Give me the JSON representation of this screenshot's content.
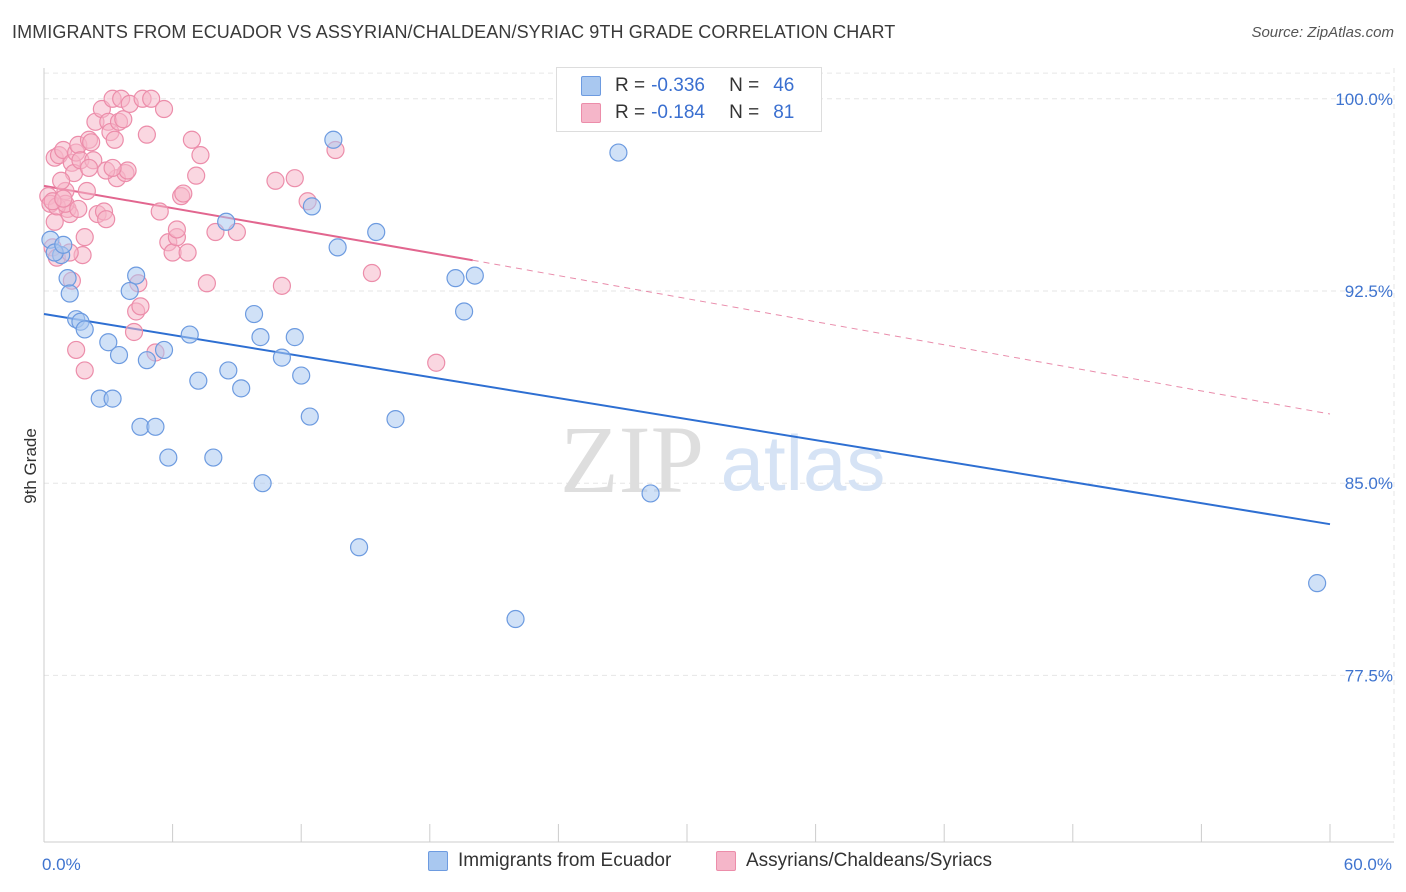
{
  "title": "IMMIGRANTS FROM ECUADOR VS ASSYRIAN/CHALDEAN/SYRIAC 9TH GRADE CORRELATION CHART",
  "source": "Source: ZipAtlas.com",
  "watermark": {
    "zip": "ZIP",
    "atlas": "atlas"
  },
  "legend": {
    "rows": [
      {
        "r_label": "R =",
        "r_value": "-0.336",
        "n_label": "N =",
        "n_value": "46"
      },
      {
        "r_label": "R =",
        "r_value": "-0.184",
        "n_label": "N =",
        "n_value": "81"
      }
    ]
  },
  "colors": {
    "blue_fill": "#a9c8f0",
    "blue_stroke": "#6d9be0",
    "blue_line": "#2e6fd2",
    "pink_fill": "#f5b6c9",
    "pink_stroke": "#ec8daa",
    "pink_line": "#e2668f",
    "tick_text": "#3f74cf",
    "grid": "#e6e6e6"
  },
  "chart_data": {
    "type": "scatter",
    "title": "IMMIGRANTS FROM ECUADOR VS ASSYRIAN/CHALDEAN/SYRIAC 9TH GRADE CORRELATION CHART",
    "xlabel": "",
    "ylabel": "9th Grade",
    "xlim": [
      0,
      60
    ],
    "ylim": [
      71.0,
      101.2
    ],
    "x_tick_labels": [
      {
        "value": 0,
        "label": "0.0%"
      },
      {
        "value": 60,
        "label": "60.0%"
      }
    ],
    "y_tick_labels": [
      {
        "value": 100.0,
        "label": "100.0%"
      },
      {
        "value": 92.5,
        "label": "92.5%"
      },
      {
        "value": 85.0,
        "label": "85.0%"
      },
      {
        "value": 77.5,
        "label": "77.5%"
      }
    ],
    "x_minor_ticks": [
      6,
      12,
      18,
      24,
      30,
      36,
      42,
      48,
      54,
      60
    ],
    "series": [
      {
        "name": "Immigrants from Ecuador",
        "color": "blue",
        "trend": {
          "x0": 0,
          "y0": 91.6,
          "x1": 60,
          "y1": 83.4
        },
        "points": [
          [
            0.3,
            94.5
          ],
          [
            0.8,
            93.9
          ],
          [
            0.5,
            94.0
          ],
          [
            1.1,
            93.0
          ],
          [
            1.2,
            92.4
          ],
          [
            1.5,
            91.4
          ],
          [
            1.7,
            91.3
          ],
          [
            1.9,
            91.0
          ],
          [
            3.0,
            90.5
          ],
          [
            3.5,
            90.0
          ],
          [
            4.3,
            93.1
          ],
          [
            4.0,
            92.5
          ],
          [
            2.6,
            88.3
          ],
          [
            3.2,
            88.3
          ],
          [
            4.5,
            87.2
          ],
          [
            5.2,
            87.2
          ],
          [
            4.8,
            89.8
          ],
          [
            5.6,
            90.2
          ],
          [
            5.8,
            86.0
          ],
          [
            6.8,
            90.8
          ],
          [
            7.2,
            89.0
          ],
          [
            7.9,
            86.0
          ],
          [
            8.5,
            95.2
          ],
          [
            8.6,
            89.4
          ],
          [
            9.2,
            88.7
          ],
          [
            9.8,
            91.6
          ],
          [
            10.1,
            90.7
          ],
          [
            11.1,
            89.9
          ],
          [
            11.7,
            90.7
          ],
          [
            10.2,
            85.0
          ],
          [
            12.0,
            89.2
          ],
          [
            12.4,
            87.6
          ],
          [
            12.5,
            95.8
          ],
          [
            13.5,
            98.4
          ],
          [
            13.7,
            94.2
          ],
          [
            14.7,
            82.5
          ],
          [
            15.5,
            94.8
          ],
          [
            16.4,
            87.5
          ],
          [
            19.2,
            93.0
          ],
          [
            19.6,
            91.7
          ],
          [
            20.1,
            93.1
          ],
          [
            22.0,
            79.7
          ],
          [
            26.8,
            97.9
          ],
          [
            28.3,
            84.6
          ],
          [
            59.4,
            81.1
          ],
          [
            0.9,
            94.3
          ]
        ]
      },
      {
        "name": "Assyrians/Chaldeans/Syriacs",
        "color": "pink",
        "trend": {
          "x0": 0,
          "y0": 96.6,
          "x1": 20.0,
          "y1": 93.7
        },
        "trend_extension": {
          "x0": 20.0,
          "y0": 93.7,
          "x1": 60,
          "y1": 87.7
        },
        "points": [
          [
            0.2,
            96.2
          ],
          [
            0.3,
            95.9
          ],
          [
            0.5,
            95.2
          ],
          [
            0.4,
            94.2
          ],
          [
            0.6,
            93.8
          ],
          [
            0.5,
            97.7
          ],
          [
            0.7,
            97.8
          ],
          [
            0.9,
            98.0
          ],
          [
            1.0,
            96.4
          ],
          [
            1.1,
            95.7
          ],
          [
            1.2,
            95.5
          ],
          [
            1.3,
            97.5
          ],
          [
            1.4,
            97.1
          ],
          [
            1.5,
            97.9
          ],
          [
            1.6,
            98.2
          ],
          [
            1.7,
            97.6
          ],
          [
            1.8,
            93.9
          ],
          [
            1.9,
            94.6
          ],
          [
            1.3,
            92.9
          ],
          [
            1.5,
            90.2
          ],
          [
            1.9,
            89.4
          ],
          [
            2.0,
            96.4
          ],
          [
            2.1,
            98.4
          ],
          [
            2.2,
            98.3
          ],
          [
            2.3,
            97.6
          ],
          [
            2.4,
            99.1
          ],
          [
            2.5,
            95.5
          ],
          [
            2.7,
            99.6
          ],
          [
            2.8,
            95.6
          ],
          [
            2.9,
            95.3
          ],
          [
            3.0,
            99.1
          ],
          [
            3.1,
            98.7
          ],
          [
            3.2,
            100.0
          ],
          [
            3.3,
            98.4
          ],
          [
            3.4,
            96.9
          ],
          [
            3.5,
            99.1
          ],
          [
            3.6,
            100.0
          ],
          [
            3.7,
            99.2
          ],
          [
            3.8,
            97.1
          ],
          [
            3.9,
            97.2
          ],
          [
            4.0,
            99.8
          ],
          [
            4.2,
            90.9
          ],
          [
            4.4,
            92.8
          ],
          [
            4.6,
            100.0
          ],
          [
            4.8,
            98.6
          ],
          [
            5.0,
            100.0
          ],
          [
            5.2,
            90.1
          ],
          [
            5.4,
            95.6
          ],
          [
            5.6,
            99.6
          ],
          [
            5.8,
            94.4
          ],
          [
            6.0,
            94.0
          ],
          [
            6.2,
            94.6
          ],
          [
            6.4,
            96.2
          ],
          [
            6.5,
            96.3
          ],
          [
            6.7,
            94.0
          ],
          [
            6.9,
            98.4
          ],
          [
            7.1,
            97.0
          ],
          [
            7.3,
            97.8
          ],
          [
            7.6,
            92.8
          ],
          [
            8.0,
            94.8
          ],
          [
            0.6,
            95.8
          ],
          [
            0.8,
            96.8
          ],
          [
            1.0,
            95.9
          ],
          [
            4.3,
            91.7
          ],
          [
            4.5,
            91.9
          ],
          [
            9.0,
            94.8
          ],
          [
            11.1,
            92.7
          ],
          [
            11.7,
            96.9
          ],
          [
            12.3,
            96.0
          ],
          [
            13.6,
            98.0
          ],
          [
            15.3,
            93.2
          ],
          [
            18.3,
            89.7
          ],
          [
            10.8,
            96.8
          ],
          [
            2.9,
            97.2
          ],
          [
            1.2,
            94.0
          ],
          [
            0.4,
            96.0
          ],
          [
            0.9,
            96.1
          ],
          [
            1.6,
            95.7
          ],
          [
            2.1,
            97.3
          ],
          [
            3.2,
            97.3
          ],
          [
            6.2,
            94.9
          ]
        ]
      }
    ]
  },
  "bottom_legend": [
    {
      "label": "Immigrants from Ecuador",
      "color": "blue"
    },
    {
      "label": "Assyrians/Chaldeans/Syriacs",
      "color": "pink"
    }
  ]
}
